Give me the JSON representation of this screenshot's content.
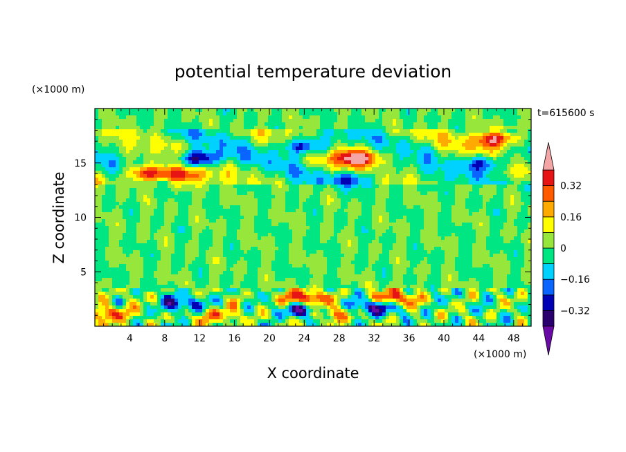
{
  "chart_data": {
    "type": "heatmap",
    "title": "potential temperature deviation",
    "xlabel": "X coordinate",
    "ylabel": "Z coordinate",
    "x_unit": "(×1000 m)",
    "y_unit": "(×1000 m)",
    "time_label": "t=615600 s",
    "xlim": [
      0,
      50
    ],
    "ylim": [
      0,
      20
    ],
    "x_ticks": [
      4,
      8,
      12,
      16,
      20,
      24,
      28,
      32,
      36,
      40,
      44,
      48
    ],
    "y_ticks": [
      5,
      10,
      15
    ],
    "colorbar": {
      "levels": [
        -0.4,
        -0.32,
        -0.24,
        -0.16,
        -0.08,
        0,
        0.08,
        0.16,
        0.24,
        0.32,
        0.4
      ],
      "tick_labels": [
        "0.32",
        "0.16",
        "0",
        "−0.16",
        "−0.32"
      ],
      "tick_values": [
        0.32,
        0.16,
        0,
        -0.16,
        -0.32
      ],
      "colors": [
        "#6a0aa6",
        "#2a006e",
        "#0000b4",
        "#0a64ff",
        "#00d2ff",
        "#00e682",
        "#96e63c",
        "#ffff00",
        "#ffaa00",
        "#ff5a00",
        "#e61414",
        "#f4a6a6"
      ]
    },
    "features": [
      {
        "x": 6,
        "z": 14,
        "value": 0.42
      },
      {
        "x": 10,
        "z": 13.8,
        "value": 0.3
      },
      {
        "x": 30,
        "z": 15.5,
        "value": 0.44
      },
      {
        "x": 46,
        "z": 17.2,
        "value": 0.45
      },
      {
        "x": 24,
        "z": 16.5,
        "value": -0.36
      },
      {
        "x": 12,
        "z": 15.4,
        "value": -0.4
      },
      {
        "x": 45,
        "z": 15,
        "value": -0.3
      },
      {
        "x": 30,
        "z": 13.5,
        "value": -0.25
      },
      {
        "x": 2,
        "z": 1.2,
        "value": 0.3
      },
      {
        "x": 24,
        "z": 2.5,
        "value": 0.42
      },
      {
        "x": 34,
        "z": 2.5,
        "value": 0.4
      },
      {
        "x": 32,
        "z": 1.8,
        "value": -0.42
      },
      {
        "x": 24,
        "z": 1.5,
        "value": -0.4
      },
      {
        "x": 10,
        "z": 2,
        "value": -0.3
      },
      {
        "x": 14,
        "z": 1,
        "value": 0.25
      },
      {
        "x": 27,
        "z": 1.2,
        "value": 0.3
      }
    ]
  }
}
